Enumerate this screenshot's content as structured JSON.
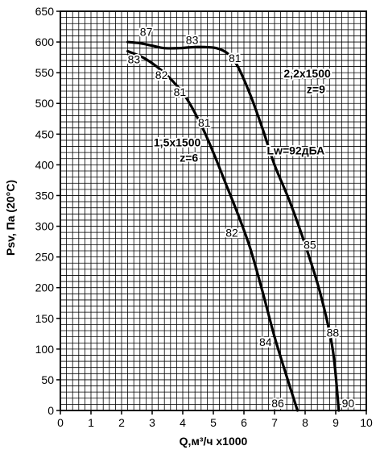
{
  "chart_data": {
    "type": "line",
    "title": "",
    "xlabel": "Q,м³/ч х1000",
    "ylabel": "Psv, Па (20°С)",
    "xlim": [
      0,
      10
    ],
    "ylim": [
      0,
      650
    ],
    "x_ticks": [
      "0",
      "1",
      "2",
      "3",
      "4",
      "5",
      "6",
      "7",
      "8",
      "9",
      "10"
    ],
    "y_ticks": [
      "0",
      "50",
      "100",
      "150",
      "200",
      "250",
      "300",
      "350",
      "400",
      "450",
      "500",
      "550",
      "600",
      "650"
    ],
    "grid": true,
    "grid_minor_step_x": 0.2,
    "grid_minor_step_y": 10,
    "colors": {
      "curve": "#000000",
      "grid": "#000000",
      "background": "#ffffff"
    },
    "series": [
      {
        "name": "1,5х1500 z=6",
        "points": [
          [
            2.2,
            585
          ],
          [
            2.8,
            572
          ],
          [
            3.5,
            545
          ],
          [
            4.1,
            510
          ],
          [
            4.6,
            465
          ],
          [
            5.0,
            420
          ],
          [
            5.4,
            370
          ],
          [
            5.8,
            320
          ],
          [
            6.2,
            265
          ],
          [
            6.6,
            195
          ],
          [
            7.0,
            120
          ],
          [
            7.4,
            55
          ],
          [
            7.75,
            0
          ]
        ]
      },
      {
        "name": "2,2х1500 z=9",
        "points": [
          [
            2.2,
            600
          ],
          [
            2.6,
            598
          ],
          [
            3.0,
            594
          ],
          [
            3.4,
            590
          ],
          [
            3.9,
            590
          ],
          [
            4.5,
            592
          ],
          [
            5.1,
            590
          ],
          [
            5.5,
            580
          ],
          [
            5.8,
            560
          ],
          [
            6.2,
            515
          ],
          [
            6.6,
            460
          ],
          [
            7.0,
            400
          ],
          [
            7.5,
            340
          ],
          [
            8.0,
            270
          ],
          [
            8.5,
            190
          ],
          [
            8.9,
            100
          ],
          [
            9.1,
            0
          ]
        ]
      }
    ],
    "annotations": [
      {
        "text": "87",
        "x": 2.6,
        "y": 610,
        "bold": false
      },
      {
        "text": "83",
        "x": 4.1,
        "y": 597,
        "bold": false
      },
      {
        "text": "81",
        "x": 5.5,
        "y": 567,
        "bold": false
      },
      {
        "text": "83",
        "x": 2.2,
        "y": 565,
        "bold": false
      },
      {
        "text": "82",
        "x": 3.1,
        "y": 540,
        "bold": false
      },
      {
        "text": "81",
        "x": 3.7,
        "y": 512,
        "bold": false
      },
      {
        "text": "81",
        "x": 4.5,
        "y": 462,
        "bold": false
      },
      {
        "text": "82",
        "x": 5.4,
        "y": 283,
        "bold": false
      },
      {
        "text": "84",
        "x": 6.5,
        "y": 105,
        "bold": false
      },
      {
        "text": "86",
        "x": 6.9,
        "y": 5,
        "bold": false
      },
      {
        "text": "85",
        "x": 7.95,
        "y": 263,
        "bold": false
      },
      {
        "text": "88",
        "x": 8.7,
        "y": 120,
        "bold": false
      },
      {
        "text": "90",
        "x": 9.2,
        "y": 5,
        "bold": false
      },
      {
        "text": "2,2х1500",
        "x": 7.3,
        "y": 542,
        "bold": true
      },
      {
        "text": "z=9",
        "x": 8.05,
        "y": 517,
        "bold": true
      },
      {
        "text": "1,5х1500",
        "x": 3.05,
        "y": 430,
        "bold": true
      },
      {
        "text": "z=6",
        "x": 3.9,
        "y": 405,
        "bold": true
      },
      {
        "text": "Lw=92дБА",
        "x": 6.75,
        "y": 417,
        "bold": true
      }
    ]
  }
}
